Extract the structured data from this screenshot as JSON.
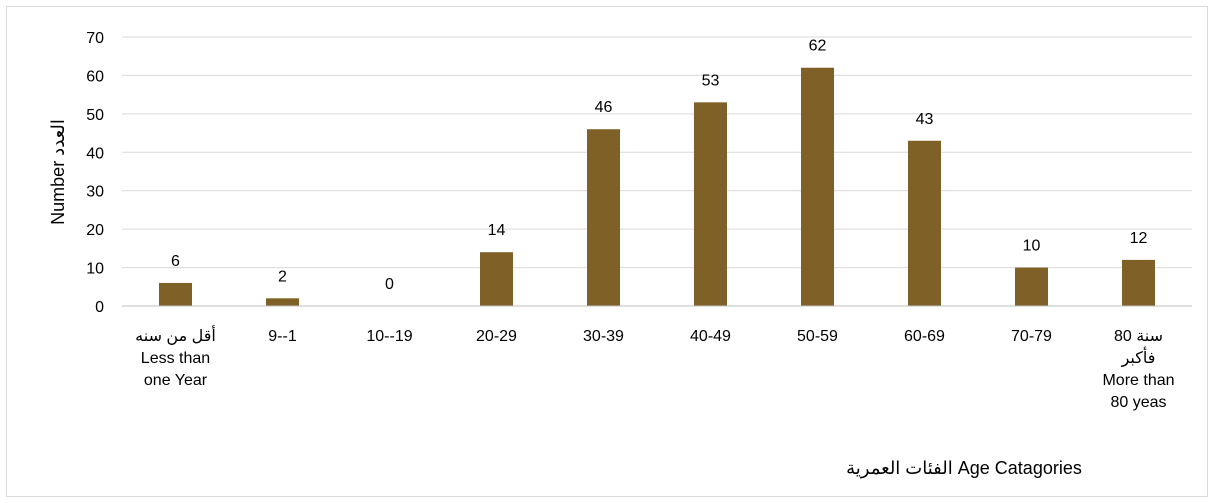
{
  "chart_data": {
    "type": "bar",
    "xlabel": "الفئات العمرية Age Catagories",
    "ylabel": "Number العدد",
    "ylim": [
      0,
      70
    ],
    "yticks": [
      0,
      10,
      20,
      30,
      40,
      50,
      60,
      70
    ],
    "grid": true,
    "legend": "none",
    "bar_color": "#7f6128",
    "categories": [
      [
        "أقل من سنه",
        "Less than",
        "one Year"
      ],
      [
        "9--1"
      ],
      [
        "10--19"
      ],
      [
        "20-29"
      ],
      [
        "30-39"
      ],
      [
        "40-49"
      ],
      [
        "50-59"
      ],
      [
        "60-69"
      ],
      [
        "70-79"
      ],
      [
        "80 سنة",
        "فأكبر",
        "More than",
        "80 yeas"
      ]
    ],
    "values": [
      6,
      2,
      0,
      14,
      46,
      53,
      62,
      43,
      10,
      12
    ]
  }
}
